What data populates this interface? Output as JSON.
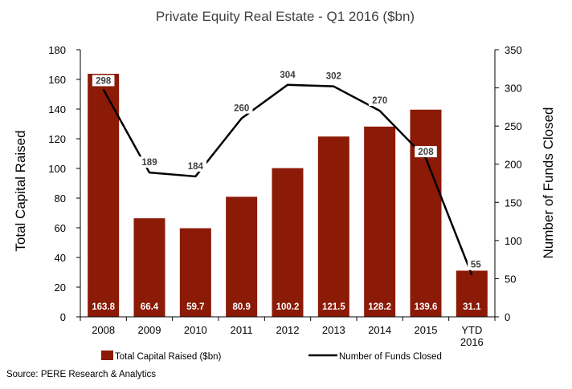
{
  "chart_data": {
    "type": "bar",
    "title": "Private Equity Real Estate - Q1 2016 ($bn)",
    "categories": [
      "2008",
      "2009",
      "2010",
      "2011",
      "2012",
      "2013",
      "2014",
      "2015",
      "YTD 2016"
    ],
    "series": [
      {
        "name": "Total Capital Raised ($bn)",
        "type": "bar",
        "axis": "left",
        "color": "#8B1A06",
        "values": [
          163.8,
          66.4,
          59.7,
          80.9,
          100.2,
          121.5,
          128.2,
          139.6,
          31.1
        ],
        "labels": [
          "163.8",
          "66.4",
          "59.7",
          "80.9",
          "100.2",
          "121.5",
          "128.2",
          "139.6",
          "31.1"
        ]
      },
      {
        "name": "Number of Funds Closed",
        "type": "line",
        "axis": "right",
        "color": "#000000",
        "values": [
          298,
          189,
          184,
          260,
          304,
          302,
          270,
          208,
          55
        ],
        "labels": [
          "298",
          "189",
          "184",
          "260",
          "304",
          "302",
          "270",
          "208",
          "55"
        ]
      }
    ],
    "ylabel": "Total Capital Raised",
    "y2label": "Number of Funds Closed",
    "ylim": [
      0,
      180
    ],
    "y2lim": [
      0,
      350
    ],
    "yticks": [
      "0",
      "20",
      "40",
      "60",
      "80",
      "100",
      "120",
      "140",
      "160",
      "180"
    ],
    "y2ticks": [
      "0",
      "50",
      "100",
      "150",
      "200",
      "250",
      "300",
      "350"
    ],
    "grid": false,
    "legend_position": "bottom"
  },
  "source": "Source:  PERE Research & Analytics"
}
